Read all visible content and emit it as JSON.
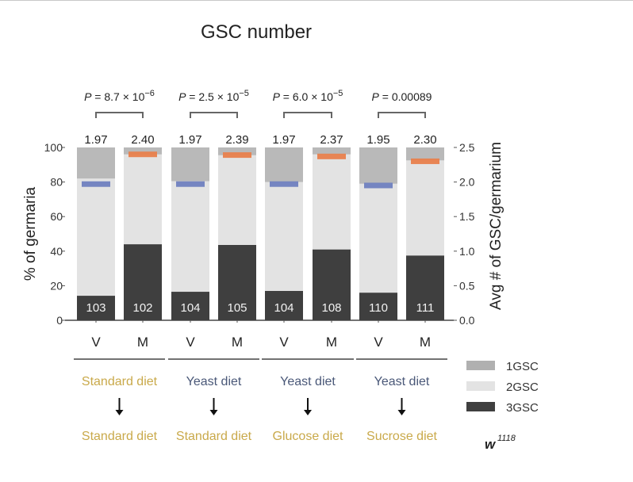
{
  "chart_data": {
    "type": "bar",
    "stacked": true,
    "title": "GSC number",
    "ylabel": "% of germaria",
    "ylabel_right": "Avg # of GSC/germarium",
    "ylim": [
      0,
      100
    ],
    "ylim_right": [
      0.0,
      2.5
    ],
    "yticks": [
      "0",
      "20",
      "40",
      "60",
      "80",
      "100"
    ],
    "yticks_right": [
      "0.0",
      "0.5",
      "1.0",
      "1.5",
      "2.0",
      "2.5"
    ],
    "categories": [
      "V",
      "M",
      "V",
      "M",
      "V",
      "M",
      "V",
      "M"
    ],
    "series": [
      {
        "name": "3GSC",
        "color": "#3f3f3f",
        "values": [
          14.2,
          44,
          16.5,
          43.6,
          17,
          41,
          16,
          37.5
        ]
      },
      {
        "name": "2GSC",
        "color": "#e3e3e3",
        "values": [
          67.8,
          52,
          64,
          51.9,
          63,
          55,
          63,
          55
        ]
      },
      {
        "name": "1GSC",
        "color": "#b9b9b9",
        "values": [
          18,
          4,
          19.5,
          4.5,
          20,
          4,
          21,
          7.5
        ]
      }
    ],
    "avg_gsc": [
      1.97,
      2.4,
      1.97,
      2.39,
      1.97,
      2.37,
      1.95,
      2.3
    ],
    "avg_colors": {
      "V": "#6f80bf",
      "M": "#e8804c"
    },
    "n_labels": [
      "103",
      "102",
      "104",
      "105",
      "104",
      "108",
      "110",
      "111"
    ],
    "p_values": [
      {
        "prefix": "P",
        "text": " = 8.7 × 10",
        "exp": "−6"
      },
      {
        "prefix": "P",
        "text": " = 2.5 × 10",
        "exp": "−5"
      },
      {
        "prefix": "P",
        "text": " = 6.0 × 10",
        "exp": "−5"
      },
      {
        "prefix": "P",
        "text": " = 0.00089",
        "exp": ""
      }
    ],
    "groups": [
      {
        "from": "Standard diet",
        "from_color": "#c9a94a",
        "to": "Standard diet",
        "to_color": "#c9a94a"
      },
      {
        "from": "Yeast diet",
        "from_color": "#4a5878",
        "to": "Standard diet",
        "to_color": "#c9a94a"
      },
      {
        "from": "Yeast diet",
        "from_color": "#4a5878",
        "to": "Glucose diet",
        "to_color": "#c9a94a"
      },
      {
        "from": "Yeast diet",
        "from_color": "#4a5878",
        "to": "Sucrose diet",
        "to_color": "#c9a94a"
      }
    ],
    "legend": [
      {
        "label": "1GSC",
        "color": "#b0b0b0"
      },
      {
        "label": "2GSC",
        "color": "#e3e3e3"
      },
      {
        "label": "3GSC",
        "color": "#3f3f3f"
      }
    ],
    "legend_position": "bottom-right",
    "genotype": {
      "base": "w",
      "sup": "1118"
    }
  }
}
